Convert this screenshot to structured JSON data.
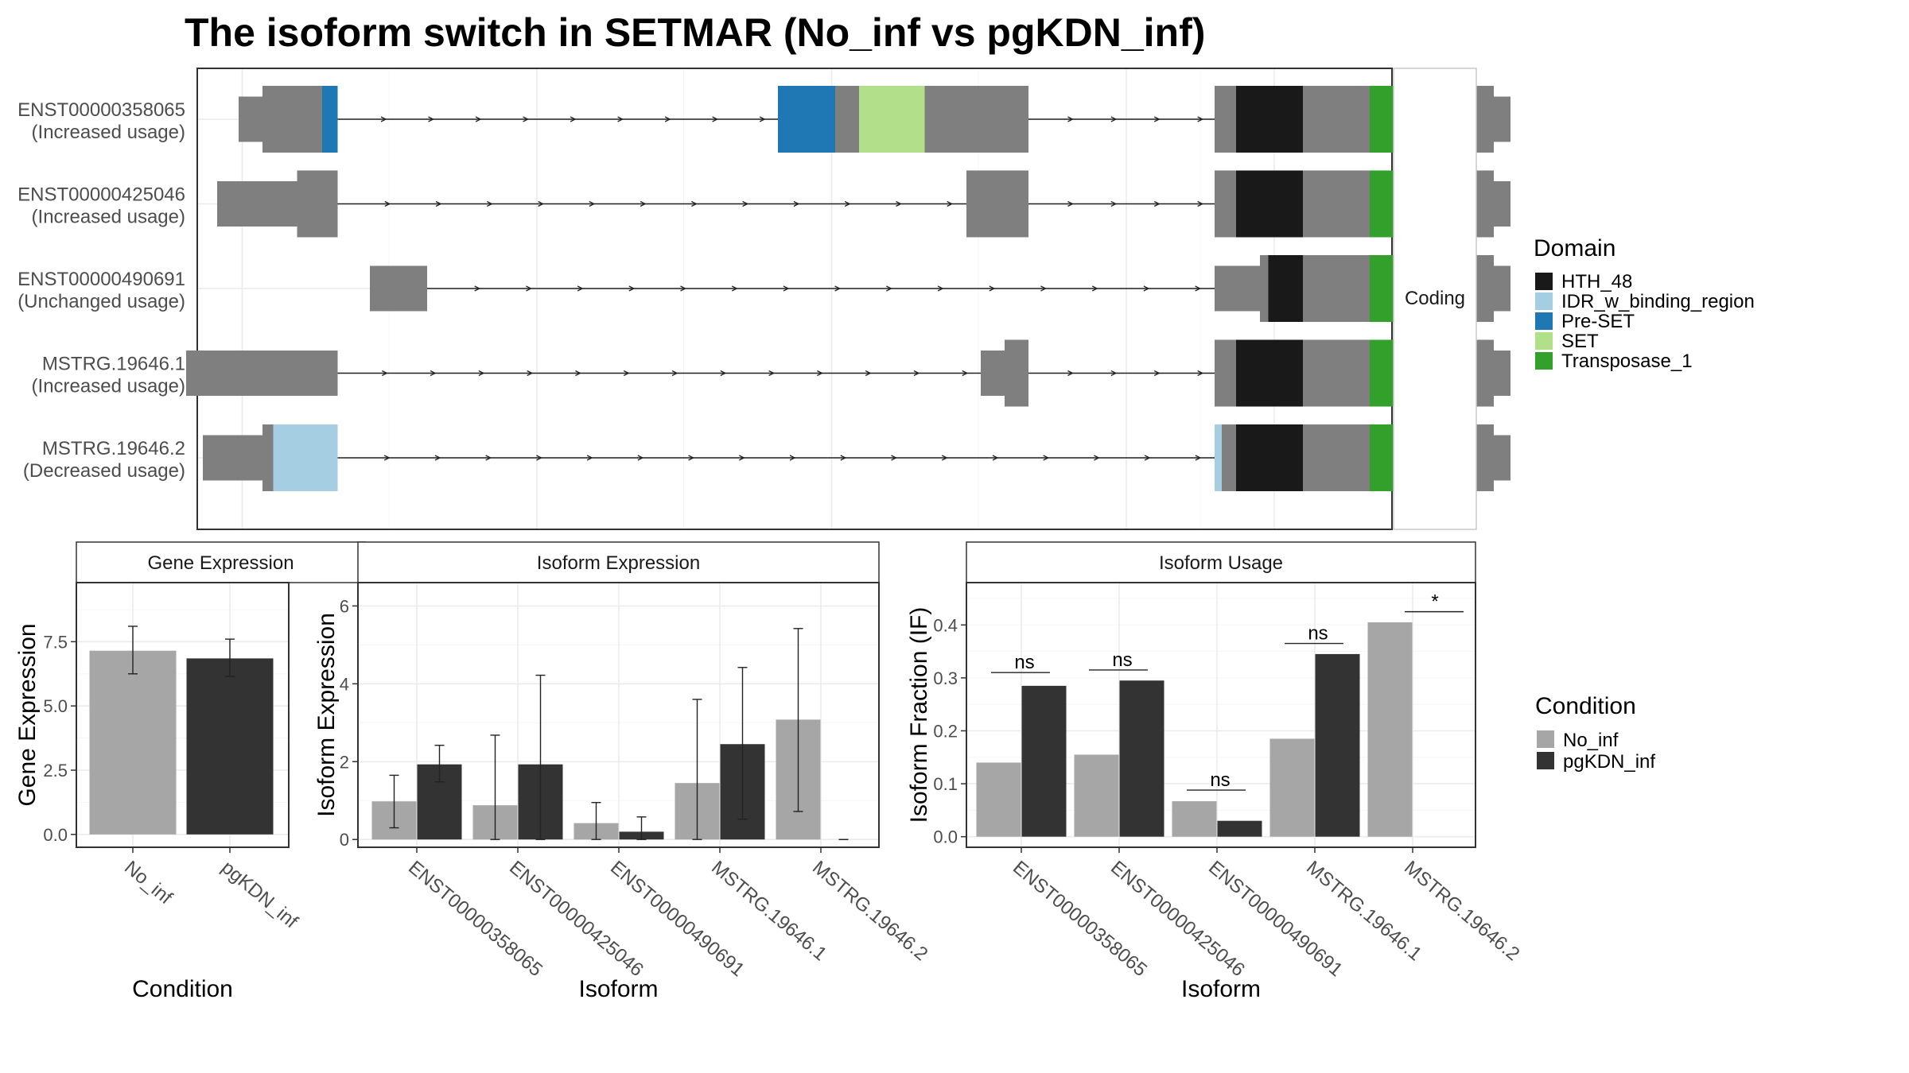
{
  "title": "The isoform switch in SETMAR (No_inf vs pgKDN_inf)",
  "colors": {
    "exon": "#7f7f7f",
    "domains": {
      "HTH_48": "#191919",
      "IDR_w_binding_region": "#a6cee3",
      "Pre-SET": "#1f78b4",
      "SET": "#b2df8a",
      "Transposase_1": "#33a02c"
    },
    "conditions": {
      "No_inf": "#a6a6a6",
      "pgKDN_inf": "#333333"
    }
  },
  "structure": {
    "strip_label": "Coding",
    "isoforms": [
      {
        "id": "ENST00000358065",
        "usage": "(Increased usage)",
        "segments": [
          {
            "x": [
              200,
              220
            ],
            "h": "thin"
          },
          {
            "x": [
              220,
              270
            ],
            "h": "thick"
          },
          {
            "x": [
              270,
              283
            ],
            "h": "thick",
            "d": "Pre-SET"
          },
          {
            "x": [
              652,
              700
            ],
            "h": "thick",
            "d": "Pre-SET"
          },
          {
            "x": [
              700,
              720
            ],
            "h": "thick"
          },
          {
            "x": [
              720,
              775
            ],
            "h": "thick",
            "d": "SET"
          },
          {
            "x": [
              775,
              862
            ],
            "h": "thick"
          },
          {
            "x": [
              1018,
              1036
            ],
            "h": "thick"
          },
          {
            "x": [
              1036,
              1092
            ],
            "h": "thick",
            "d": "HTH_48"
          },
          {
            "x": [
              1092,
              1148
            ],
            "h": "thick"
          },
          {
            "x": [
              1148,
              1195
            ],
            "h": "thick",
            "d": "Transposase_1"
          },
          {
            "x": [
              1195,
              1252
            ],
            "h": "thick"
          },
          {
            "x": [
              1252,
              1266
            ],
            "h": "thin"
          }
        ]
      },
      {
        "id": "ENST00000425046",
        "usage": "(Increased usage)",
        "segments": [
          {
            "x": [
              182,
              249
            ],
            "h": "thin"
          },
          {
            "x": [
              249,
              283
            ],
            "h": "thick"
          },
          {
            "x": [
              810,
              862
            ],
            "h": "thick"
          },
          {
            "x": [
              1018,
              1036
            ],
            "h": "thick"
          },
          {
            "x": [
              1036,
              1092
            ],
            "h": "thick",
            "d": "HTH_48"
          },
          {
            "x": [
              1092,
              1148
            ],
            "h": "thick"
          },
          {
            "x": [
              1148,
              1195
            ],
            "h": "thick",
            "d": "Transposase_1"
          },
          {
            "x": [
              1195,
              1252
            ],
            "h": "thick"
          },
          {
            "x": [
              1252,
              1266
            ],
            "h": "thin"
          }
        ]
      },
      {
        "id": "ENST00000490691",
        "usage": "(Unchanged usage)",
        "segments": [
          {
            "x": [
              310,
              358
            ],
            "h": "thin"
          },
          {
            "x": [
              1018,
              1056
            ],
            "h": "thin"
          },
          {
            "x": [
              1056,
              1063
            ],
            "h": "thick"
          },
          {
            "x": [
              1063,
              1092
            ],
            "h": "thick",
            "d": "HTH_48"
          },
          {
            "x": [
              1092,
              1148
            ],
            "h": "thick"
          },
          {
            "x": [
              1148,
              1195
            ],
            "h": "thick",
            "d": "Transposase_1"
          },
          {
            "x": [
              1195,
              1252
            ],
            "h": "thick"
          },
          {
            "x": [
              1252,
              1266
            ],
            "h": "thin"
          }
        ]
      },
      {
        "id": "MSTRG.19646.1",
        "usage": "(Increased usage)",
        "segments": [
          {
            "x": [
              156,
              283
            ],
            "h": "thin"
          },
          {
            "x": [
              822,
              842
            ],
            "h": "thin"
          },
          {
            "x": [
              842,
              862
            ],
            "h": "thick"
          },
          {
            "x": [
              1018,
              1036
            ],
            "h": "thick"
          },
          {
            "x": [
              1036,
              1092
            ],
            "h": "thick",
            "d": "HTH_48"
          },
          {
            "x": [
              1092,
              1148
            ],
            "h": "thick"
          },
          {
            "x": [
              1148,
              1195
            ],
            "h": "thick",
            "d": "Transposase_1"
          },
          {
            "x": [
              1195,
              1252
            ],
            "h": "thick"
          },
          {
            "x": [
              1252,
              1266
            ],
            "h": "thin"
          }
        ]
      },
      {
        "id": "MSTRG.19646.2",
        "usage": "(Decreased usage)",
        "segments": [
          {
            "x": [
              170,
              220
            ],
            "h": "thin"
          },
          {
            "x": [
              220,
              229
            ],
            "h": "thick"
          },
          {
            "x": [
              229,
              283
            ],
            "h": "thick",
            "d": "IDR_w_binding_region"
          },
          {
            "x": [
              1018,
              1024
            ],
            "h": "thick",
            "d": "IDR_w_binding_region"
          },
          {
            "x": [
              1024,
              1036
            ],
            "h": "thick"
          },
          {
            "x": [
              1036,
              1092
            ],
            "h": "thick",
            "d": "HTH_48"
          },
          {
            "x": [
              1092,
              1148
            ],
            "h": "thick"
          },
          {
            "x": [
              1148,
              1195
            ],
            "h": "thick",
            "d": "Transposase_1"
          },
          {
            "x": [
              1195,
              1252
            ],
            "h": "thick"
          },
          {
            "x": [
              1252,
              1266
            ],
            "h": "thin"
          }
        ]
      }
    ],
    "introns": [
      {
        "row": 0,
        "x": [
          283,
          652
        ]
      },
      {
        "row": 0,
        "x": [
          862,
          1018
        ]
      },
      {
        "row": 1,
        "x": [
          283,
          810
        ]
      },
      {
        "row": 1,
        "x": [
          862,
          1018
        ]
      },
      {
        "row": 2,
        "x": [
          358,
          1018
        ]
      },
      {
        "row": 3,
        "x": [
          283,
          822
        ]
      },
      {
        "row": 3,
        "x": [
          862,
          1018
        ]
      },
      {
        "row": 4,
        "x": [
          283,
          1018
        ]
      }
    ]
  },
  "legends": {
    "domain_title": "Domain",
    "domain_items": [
      "HTH_48",
      "IDR_w_binding_region",
      "Pre-SET",
      "SET",
      "Transposase_1"
    ],
    "condition_title": "Condition",
    "condition_items": [
      "No_inf",
      "pgKDN_inf"
    ]
  },
  "chart_data": [
    {
      "type": "bar",
      "title": "Gene Expression",
      "xlabel": "Condition",
      "ylabel": "Gene Expression",
      "categories": [
        "No_inf",
        "pgKDN_inf"
      ],
      "values": [
        7.15,
        6.85
      ],
      "error": [
        [
          6.25,
          8.1
        ],
        [
          6.15,
          7.6
        ]
      ],
      "ylim": [
        -0.5,
        9.8
      ],
      "yticks": [
        "0.0",
        "2.5",
        "5.0",
        "7.5"
      ]
    },
    {
      "type": "bar",
      "title": "Isoform Expression",
      "xlabel": "Isoform",
      "ylabel": "Isoform Expression",
      "categories": [
        "ENST00000358065",
        "ENST00000425046",
        "ENST00000490691",
        "MSTRG.19646.1",
        "MSTRG.19646.2"
      ],
      "series": [
        {
          "name": "No_inf",
          "values": [
            0.98,
            0.88,
            0.42,
            1.45,
            3.08
          ],
          "error": [
            [
              0.3,
              1.65
            ],
            [
              0.0,
              2.68
            ],
            [
              0.0,
              0.95
            ],
            [
              0.0,
              3.6
            ],
            [
              0.72,
              5.42
            ]
          ]
        },
        {
          "name": "pgKDN_inf",
          "values": [
            1.93,
            1.93,
            0.2,
            2.45,
            0.0
          ],
          "error": [
            [
              1.48,
              2.42
            ],
            [
              0.0,
              4.22
            ],
            [
              0.0,
              0.58
            ],
            [
              0.52,
              4.42
            ],
            [
              0.0,
              0.0
            ]
          ]
        }
      ],
      "ylim": [
        -0.2,
        6.6
      ],
      "yticks": [
        "0",
        "2",
        "4",
        "6"
      ]
    },
    {
      "type": "bar",
      "title": "Isoform Usage",
      "xlabel": "Isoform",
      "ylabel": "Isoform Fraction (IF)",
      "categories": [
        "ENST00000358065",
        "ENST00000425046",
        "ENST00000490691",
        "MSTRG.19646.1",
        "MSTRG.19646.2"
      ],
      "series": [
        {
          "name": "No_inf",
          "values": [
            0.14,
            0.155,
            0.067,
            0.185,
            0.405
          ]
        },
        {
          "name": "pgKDN_inf",
          "values": [
            0.285,
            0.295,
            0.03,
            0.345,
            0.0
          ]
        }
      ],
      "annotations": [
        {
          "label": "ns",
          "y": 0.31
        },
        {
          "label": "ns",
          "y": 0.315
        },
        {
          "label": "ns",
          "y": 0.088
        },
        {
          "label": "ns",
          "y": 0.365
        },
        {
          "label": "*",
          "y": 0.425
        }
      ],
      "ylim": [
        -0.02,
        0.48
      ],
      "yticks": [
        "0.0",
        "0.1",
        "0.2",
        "0.3",
        "0.4"
      ]
    }
  ]
}
